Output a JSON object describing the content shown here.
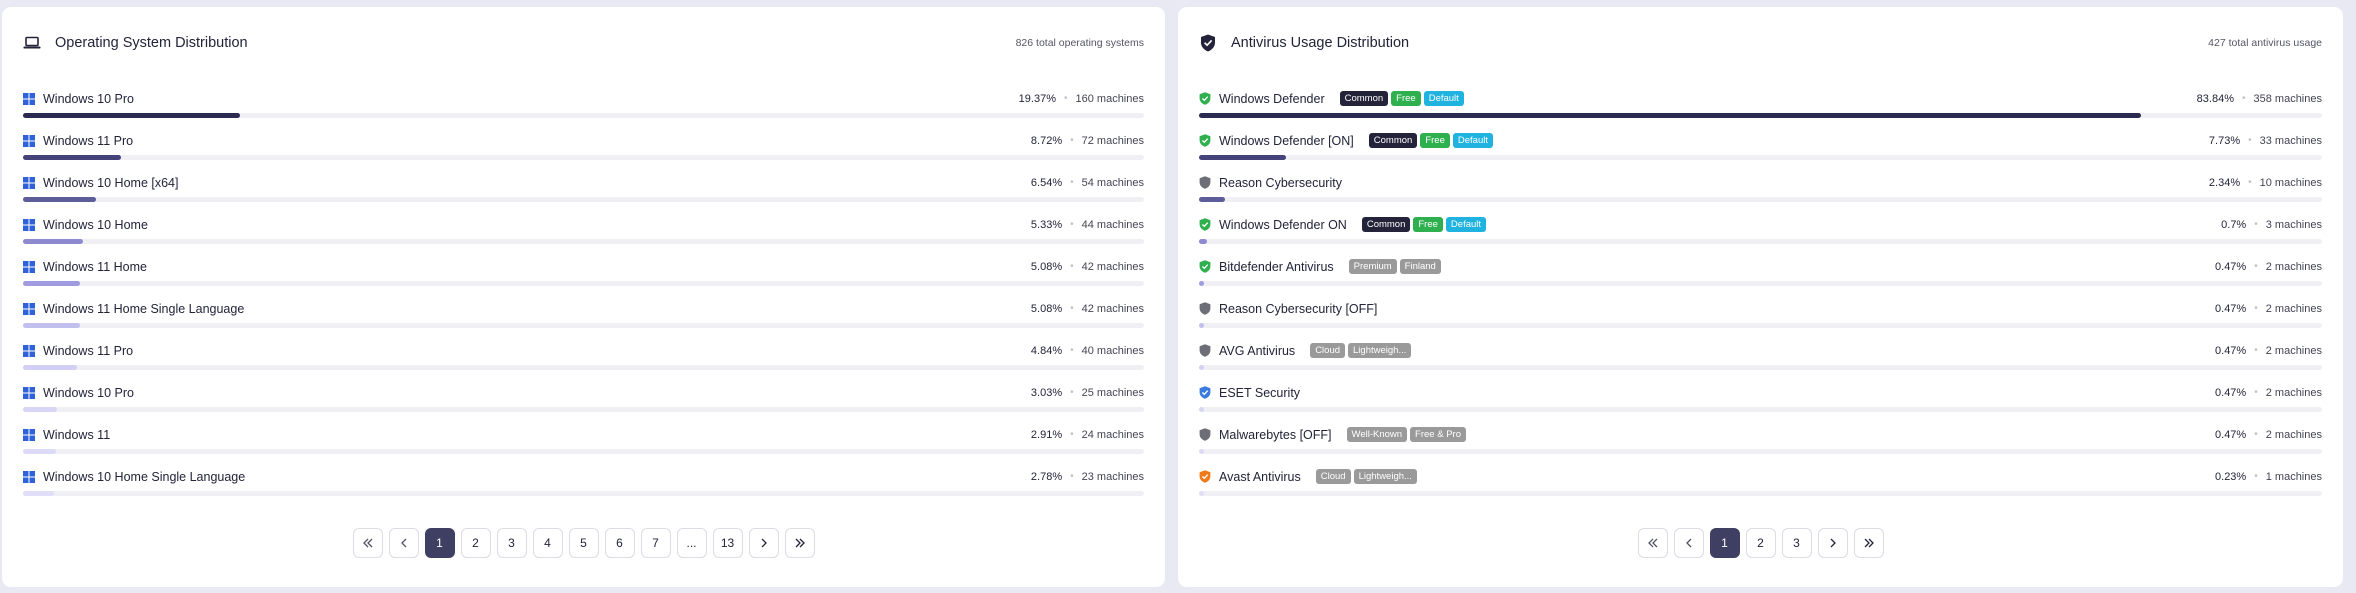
{
  "os_panel": {
    "title": "Operating System Distribution",
    "total": "826 total operating systems",
    "icon": "laptop-icon",
    "rows": [
      {
        "label": "Windows 10 Pro",
        "pct": "19.37%",
        "machines": "160 machines",
        "fraction": 0.1937,
        "color": "#2b2b52"
      },
      {
        "label": "Windows 11 Pro",
        "pct": "8.72%",
        "machines": "72 machines",
        "fraction": 0.0872,
        "color": "#43437a"
      },
      {
        "label": "Windows 10 Home [x64]",
        "pct": "6.54%",
        "machines": "54 machines",
        "fraction": 0.0654,
        "color": "#5d5d9a"
      },
      {
        "label": "Windows 10 Home",
        "pct": "5.33%",
        "machines": "44 machines",
        "fraction": 0.0533,
        "color": "#8d8ad0"
      },
      {
        "label": "Windows 11 Home",
        "pct": "5.08%",
        "machines": "42 machines",
        "fraction": 0.0508,
        "color": "#9f9be0"
      },
      {
        "label": "Windows 11 Home Single Language",
        "pct": "5.08%",
        "machines": "42 machines",
        "fraction": 0.0508,
        "color": "#c2bfef"
      },
      {
        "label": "Windows 11 Pro",
        "pct": "4.84%",
        "machines": "40 machines",
        "fraction": 0.0484,
        "color": "#d2d0f4"
      },
      {
        "label": "Windows 10 Pro",
        "pct": "3.03%",
        "machines": "25 machines",
        "fraction": 0.0303,
        "color": "#d8d6f6"
      },
      {
        "label": "Windows 11",
        "pct": "2.91%",
        "machines": "24 machines",
        "fraction": 0.0291,
        "color": "#dcdaf7"
      },
      {
        "label": "Windows 10 Home Single Language",
        "pct": "2.78%",
        "machines": "23 machines",
        "fraction": 0.0278,
        "color": "#e0def8"
      }
    ],
    "pagination": {
      "first_icon": "double-chevron-left-icon",
      "prev_icon": "chevron-left-icon",
      "pages": [
        "1",
        "2",
        "3",
        "4",
        "5",
        "6",
        "7",
        "...",
        "13"
      ],
      "current": "1",
      "next_icon": "chevron-right-icon",
      "last_icon": "double-chevron-right-icon"
    }
  },
  "av_panel": {
    "title": "Antivirus Usage Distribution",
    "total": "427 total antivirus usage",
    "icon": "shield-check-icon",
    "rows": [
      {
        "label": "Windows Defender",
        "icon": "shield-check-green-icon",
        "badges": [
          {
            "text": "Common",
            "color": "#23233a"
          },
          {
            "text": "Free",
            "color": "#2fb04f"
          },
          {
            "text": "Default",
            "color": "#20b3e0"
          }
        ],
        "pct": "83.84%",
        "machines": "358 machines",
        "fraction": 0.8384,
        "color": "#2b2b52"
      },
      {
        "label": "Windows Defender [ON]",
        "icon": "shield-check-green-icon",
        "badges": [
          {
            "text": "Common",
            "color": "#23233a"
          },
          {
            "text": "Free",
            "color": "#2fb04f"
          },
          {
            "text": "Default",
            "color": "#20b3e0"
          }
        ],
        "pct": "7.73%",
        "machines": "33 machines",
        "fraction": 0.0773,
        "color": "#43437a"
      },
      {
        "label": "Reason Cybersecurity",
        "icon": "shield-gray-icon",
        "badges": [],
        "pct": "2.34%",
        "machines": "10 machines",
        "fraction": 0.0234,
        "color": "#5d5d9a"
      },
      {
        "label": "Windows Defender ON",
        "icon": "shield-check-green-icon",
        "badges": [
          {
            "text": "Common",
            "color": "#23233a"
          },
          {
            "text": "Free",
            "color": "#2fb04f"
          },
          {
            "text": "Default",
            "color": "#20b3e0"
          }
        ],
        "pct": "0.7%",
        "machines": "3 machines",
        "fraction": 0.007,
        "color": "#8d8ad0"
      },
      {
        "label": "Bitdefender Antivirus",
        "icon": "shield-check-green-icon",
        "badges": [
          {
            "text": "Premium",
            "color": "#9a9a9a"
          },
          {
            "text": "Finland",
            "color": "#9a9a9a"
          }
        ],
        "pct": "0.47%",
        "machines": "2 machines",
        "fraction": 0.0047,
        "color": "#9f9be0"
      },
      {
        "label": "Reason Cybersecurity [OFF]",
        "icon": "shield-gray-icon",
        "badges": [],
        "pct": "0.47%",
        "machines": "2 machines",
        "fraction": 0.0047,
        "color": "#c2bfef"
      },
      {
        "label": "AVG Antivirus",
        "icon": "shield-gray-icon",
        "badges": [
          {
            "text": "Cloud",
            "color": "#9a9a9a"
          },
          {
            "text": "Lightweigh...",
            "color": "#9a9a9a"
          }
        ],
        "pct": "0.47%",
        "machines": "2 machines",
        "fraction": 0.0047,
        "color": "#d2d0f4"
      },
      {
        "label": "ESET Security",
        "icon": "shield-check-blue-icon",
        "badges": [],
        "pct": "0.47%",
        "machines": "2 machines",
        "fraction": 0.0047,
        "color": "#d8d6f6"
      },
      {
        "label": "Malwarebytes [OFF]",
        "icon": "shield-gray-icon",
        "badges": [
          {
            "text": "Well-Known",
            "color": "#9a9a9a"
          },
          {
            "text": "Free & Pro",
            "color": "#9a9a9a"
          }
        ],
        "pct": "0.47%",
        "machines": "2 machines",
        "fraction": 0.0047,
        "color": "#dcdaf7"
      },
      {
        "label": "Avast Antivirus",
        "icon": "shield-orange-icon",
        "badges": [
          {
            "text": "Cloud",
            "color": "#9a9a9a"
          },
          {
            "text": "Lightweigh...",
            "color": "#9a9a9a"
          }
        ],
        "pct": "0.23%",
        "machines": "1 machines",
        "fraction": 0.0023,
        "color": "#e0def8"
      }
    ],
    "pagination": {
      "first_icon": "double-chevron-left-icon",
      "prev_icon": "chevron-left-icon",
      "pages": [
        "1",
        "2",
        "3"
      ],
      "current": "1",
      "next_icon": "chevron-right-icon",
      "last_icon": "double-chevron-right-icon"
    }
  }
}
